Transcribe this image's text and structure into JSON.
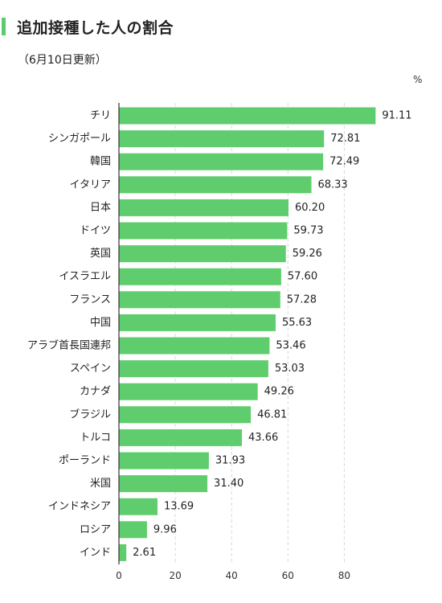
{
  "header": {
    "title": "追加接種した人の割合",
    "subtitle": "（6月10日更新）",
    "unit": "%"
  },
  "colors": {
    "accent": "#5bcb6b",
    "bar": "#5fcd6d",
    "grid": "#d9d9d9",
    "axis": "#333333"
  },
  "chart_data": {
    "type": "bar",
    "orientation": "horizontal",
    "title": "追加接種した人の割合",
    "subtitle": "（6月10日更新）",
    "unit": "%",
    "categories": [
      "チリ",
      "シンガポール",
      "韓国",
      "イタリア",
      "日本",
      "ドイツ",
      "英国",
      "イスラエル",
      "フランス",
      "中国",
      "アラブ首長国連邦",
      "スペイン",
      "カナダ",
      "ブラジル",
      "トルコ",
      "ポーランド",
      "米国",
      "インドネシア",
      "ロシア",
      "インド"
    ],
    "values": [
      91.11,
      72.81,
      72.49,
      68.33,
      60.2,
      59.73,
      59.26,
      57.6,
      57.28,
      55.63,
      53.46,
      53.03,
      49.26,
      46.81,
      43.66,
      31.93,
      31.4,
      13.69,
      9.96,
      2.61
    ],
    "value_labels": [
      "91.11",
      "72.81",
      "72.49",
      "68.33",
      "60.20",
      "59.73",
      "59.26",
      "57.60",
      "57.28",
      "55.63",
      "53.46",
      "53.03",
      "49.26",
      "46.81",
      "43.66",
      "31.93",
      "31.40",
      "13.69",
      "9.96",
      "2.61"
    ],
    "xticks": [
      0,
      20,
      40,
      60,
      80
    ],
    "xlim": [
      0,
      100
    ],
    "grid": true
  }
}
